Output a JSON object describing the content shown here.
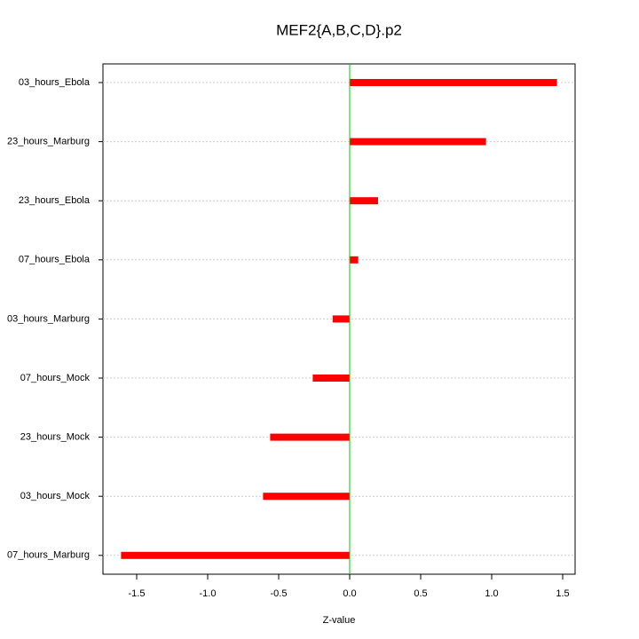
{
  "chart_data": {
    "type": "barh",
    "title": "MEF2{A,B,C,D}.p2",
    "x_label": "Z-value",
    "categories": [
      "03_hours_Ebola",
      "23_hours_Marburg",
      "23_hours_Ebola",
      "07_hours_Ebola",
      "03_hours_Marburg",
      "07_hours_Mock",
      "23_hours_Mock",
      "03_hours_Mock",
      "07_hours_Marburg"
    ],
    "values": [
      1.46,
      0.96,
      0.2,
      0.06,
      -0.12,
      -0.26,
      -0.56,
      -0.61,
      -1.61
    ],
    "color": "#ff0000",
    "zero_line_color": "#00cc00",
    "xlim": [
      -1.7375,
      1.5875
    ],
    "xticks": [
      -1.5,
      {
        "value": -1.0,
        "label": "-1.0"
      },
      -0.5,
      {
        "value": 0,
        "label": "0.0"
      },
      0.5,
      {
        "value": 1.0,
        "label": "1.0"
      },
      1.5
    ],
    "grid": true
  }
}
